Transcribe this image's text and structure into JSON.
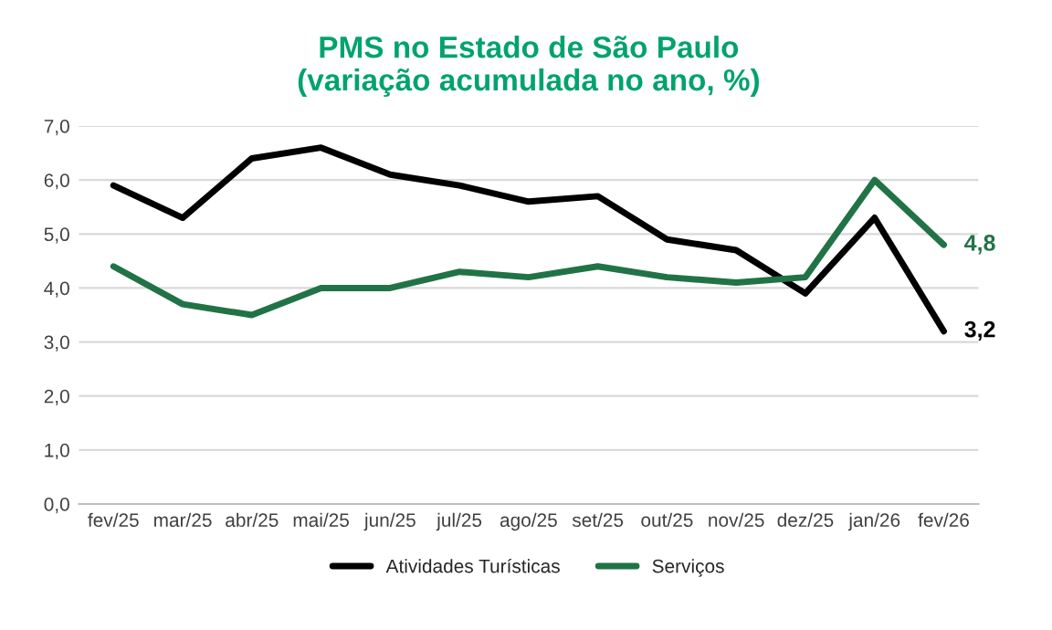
{
  "chart_data": {
    "type": "line",
    "title": "PMS no Estado de São Paulo\n(variação acumulada no ano, %)",
    "categories": [
      "fev/25",
      "mar/25",
      "abr/25",
      "mai/25",
      "jun/25",
      "jul/25",
      "ago/25",
      "set/25",
      "out/25",
      "nov/25",
      "dez/25",
      "jan/26",
      "fev/26"
    ],
    "series": [
      {
        "name": "Atividades Turísticas",
        "color": "#000000",
        "values": [
          5.9,
          5.3,
          6.4,
          6.6,
          6.1,
          5.9,
          5.6,
          5.7,
          4.9,
          4.7,
          3.9,
          5.3,
          3.2
        ],
        "value_labels": [
          null,
          null,
          null,
          null,
          null,
          null,
          null,
          null,
          null,
          null,
          null,
          null,
          "3,2"
        ]
      },
      {
        "name": "Serviços",
        "color": "#217346",
        "values": [
          4.4,
          3.7,
          3.5,
          4.0,
          4.0,
          4.3,
          4.2,
          4.4,
          4.2,
          4.1,
          4.2,
          6.0,
          4.8
        ],
        "value_labels": [
          null,
          null,
          null,
          null,
          null,
          null,
          null,
          null,
          null,
          null,
          null,
          null,
          "4,8"
        ]
      }
    ],
    "ylim": [
      0,
      7
    ],
    "yticks": [
      {
        "value": 0,
        "label": "0,0"
      },
      {
        "value": 1,
        "label": "1,0"
      },
      {
        "value": 2,
        "label": "2,0"
      },
      {
        "value": 3,
        "label": "3,0"
      },
      {
        "value": 4,
        "label": "4,0"
      },
      {
        "value": 5,
        "label": "5,0"
      },
      {
        "value": 6,
        "label": "6,0"
      },
      {
        "value": 7,
        "label": "7,0"
      }
    ],
    "grid": "y",
    "legend": "bottom",
    "marker": "none",
    "line_style": "solid"
  }
}
